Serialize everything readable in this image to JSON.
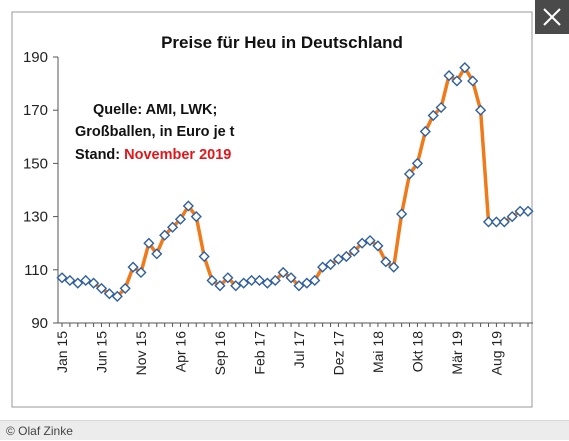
{
  "caption": "© Olaf Zinke",
  "close_icon": "close-icon",
  "colors": {
    "line": "#f07a1a",
    "marker_stroke": "#2f5f9e",
    "marker_fill": "#ffffff",
    "highlight": "#e2161a"
  },
  "chart_data": {
    "type": "line",
    "title": "Preise für Heu in Deutschland",
    "source_lines": [
      "Quelle: AMI, LWK;",
      "Großballen, in Euro je t"
    ],
    "stand_label": "Stand:",
    "stand_value": "November 2019",
    "ylim": [
      90,
      190
    ],
    "yticks": [
      90,
      110,
      130,
      150,
      170,
      190
    ],
    "grid": false,
    "x_tick_labels": [
      {
        "label": "Jan 15",
        "index": 0
      },
      {
        "label": "Jun 15",
        "index": 5
      },
      {
        "label": "Nov 15",
        "index": 10
      },
      {
        "label": "Apr 16",
        "index": 15
      },
      {
        "label": "Sep 16",
        "index": 20
      },
      {
        "label": "Feb 17",
        "index": 25
      },
      {
        "label": "Jul 17",
        "index": 30
      },
      {
        "label": "Dez 17",
        "index": 35
      },
      {
        "label": "Mai 18",
        "index": 40
      },
      {
        "label": "Okt 18",
        "index": 45
      },
      {
        "label": "Mär 19",
        "index": 50
      },
      {
        "label": "Aug 19",
        "index": 55
      }
    ],
    "series": [
      {
        "values": [
          107,
          106,
          105,
          106,
          105,
          103,
          101,
          100,
          103,
          111,
          109,
          120,
          116,
          123,
          126,
          129,
          134,
          130,
          115,
          106,
          104,
          107,
          104,
          105,
          106,
          106,
          105,
          106,
          109,
          107,
          104,
          105,
          106,
          111,
          112,
          114,
          115,
          117,
          120,
          121,
          119,
          113,
          111,
          131,
          146,
          150,
          162,
          168,
          171,
          183,
          181,
          186,
          181,
          170,
          128,
          128,
          128,
          130,
          132,
          132
        ]
      }
    ]
  }
}
